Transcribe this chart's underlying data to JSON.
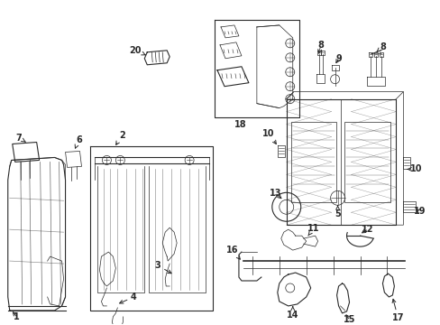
{
  "background_color": "#ffffff",
  "line_color": "#2a2a2a",
  "fig_width": 4.89,
  "fig_height": 3.6,
  "dpi": 100,
  "label_fs": 7.0,
  "lw_thin": 0.5,
  "lw_med": 0.8,
  "lw_thick": 1.2
}
